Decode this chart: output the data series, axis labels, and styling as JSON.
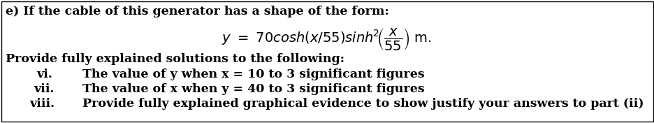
{
  "bg_color": "#ffffff",
  "border_color": "#000000",
  "line1": "e) If the cable of this generator has a shape of the form:",
  "line3": "Provide fully explained solutions to the following:",
  "vi_label": "vi.",
  "vi_text": "The value of y when x = 10 to 3 significant figures",
  "vii_label": "vii.",
  "vii_text": "The value of x when y = 40 to 3 significant figures",
  "viii_label": "viii.",
  "viii_text": "Provide fully explained graphical evidence to show justify your answers to part (ii)",
  "font_size_main": 12.5,
  "font_size_formula": 14,
  "text_color": "#000000",
  "figwidth": 9.37,
  "figheight": 1.76
}
